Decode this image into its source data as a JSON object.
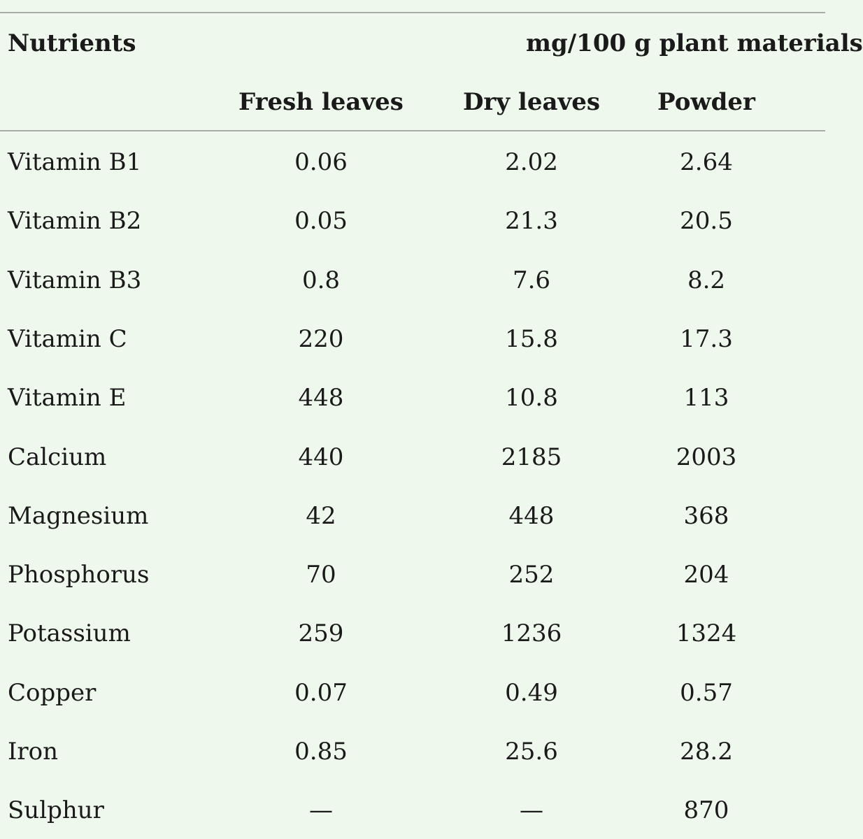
{
  "header": {
    "row_label": "Nutrients",
    "group": "mg/100 g plant materials",
    "columns": [
      "Fresh leaves",
      "Dry leaves",
      "Powder"
    ]
  },
  "table": {
    "rows": [
      [
        "Vitamin B1",
        "0.06",
        "2.02",
        "2.64"
      ],
      [
        "Vitamin B2",
        "0.05",
        "21.3",
        "20.5"
      ],
      [
        "Vitamin B3",
        "0.8",
        "7.6",
        "8.2"
      ],
      [
        "Vitamin C",
        "220",
        "15.8",
        "17.3"
      ],
      [
        "Vitamin E",
        "448",
        "10.8",
        "113"
      ],
      [
        "Calcium",
        "440",
        "2185",
        "2003"
      ],
      [
        "Magnesium",
        "42",
        "448",
        "368"
      ],
      [
        "Phosphorus",
        "70",
        "252",
        "204"
      ],
      [
        "Potassium",
        "259",
        "1236",
        "1324"
      ],
      [
        "Copper",
        "0.07",
        "0.49",
        "0.57"
      ],
      [
        "Iron",
        "0.85",
        "25.6",
        "28.2"
      ],
      [
        "Sulphur",
        "—",
        "—",
        "870"
      ]
    ]
  }
}
